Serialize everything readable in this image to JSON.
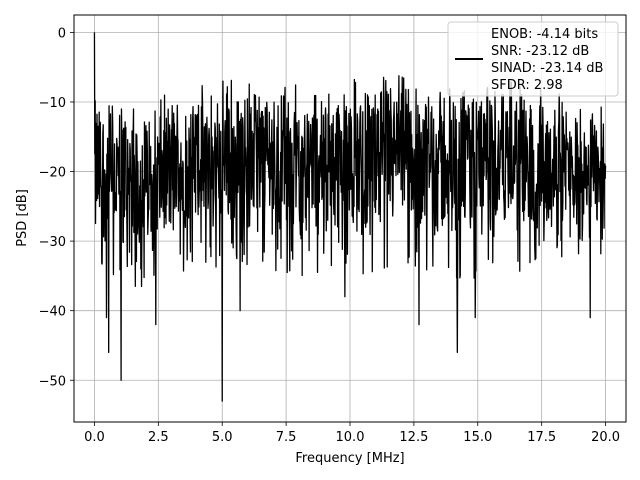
{
  "chart_data": {
    "type": "line",
    "title": "",
    "xlabel": "Frequency [MHz]",
    "ylabel": "PSD [dB]",
    "xlim": [
      -0.8,
      20.8
    ],
    "ylim": [
      -56,
      2.5
    ],
    "xticks": [
      0.0,
      2.5,
      5.0,
      7.5,
      10.0,
      12.5,
      15.0,
      17.5,
      20.0
    ],
    "xtick_labels": [
      "0.0",
      "2.5",
      "5.0",
      "7.5",
      "10.0",
      "12.5",
      "15.0",
      "17.5",
      "20.0"
    ],
    "yticks": [
      0,
      -10,
      -20,
      -30,
      -40,
      -50
    ],
    "ytick_labels": [
      "0",
      "−10",
      "−20",
      "−30",
      "−40",
      "−50"
    ],
    "grid": true,
    "legend_placement": "top-right",
    "series": [
      {
        "name": "ENOB: -4.14 bits\nSNR: -23.12 dB\nSINAD: -23.14 dB\nSFDR: 2.98",
        "color": "#000000",
        "description": "Noisy PSD spectrum spanning 0 to 20 MHz; mean band about -18 dB, upper envelope about -6 dB, deep dips to about -53 dB; spike to 0 dB at DC",
        "x_range": [
          0.0,
          20.0
        ],
        "peak": {
          "x": 0.0,
          "y": 0.0
        },
        "envelope_x": [
          0,
          2,
          4,
          6,
          8,
          10,
          12,
          14,
          16,
          18,
          20
        ],
        "envelope_upper": [
          -8,
          -9,
          -7,
          -5,
          -6,
          -5,
          -5,
          -6,
          -6,
          -8,
          -10
        ],
        "envelope_lower": [
          -32,
          -33,
          -30,
          -30,
          -31,
          -31,
          -30,
          -32,
          -31,
          -30,
          -28
        ],
        "dips": [
          {
            "x": 0.47,
            "y": -41
          },
          {
            "x": 0.55,
            "y": -46
          },
          {
            "x": 1.05,
            "y": -50
          },
          {
            "x": 2.4,
            "y": -42
          },
          {
            "x": 5.0,
            "y": -53
          },
          {
            "x": 5.7,
            "y": -40
          },
          {
            "x": 9.8,
            "y": -38
          },
          {
            "x": 12.7,
            "y": -42
          },
          {
            "x": 14.2,
            "y": -46
          },
          {
            "x": 14.9,
            "y": -41
          },
          {
            "x": 19.4,
            "y": -41
          }
        ]
      }
    ],
    "legend": {
      "lines": [
        "ENOB: -4.14 bits",
        "SNR: -23.12 dB",
        "SINAD: -23.14 dB",
        "SFDR: 2.98"
      ]
    }
  }
}
